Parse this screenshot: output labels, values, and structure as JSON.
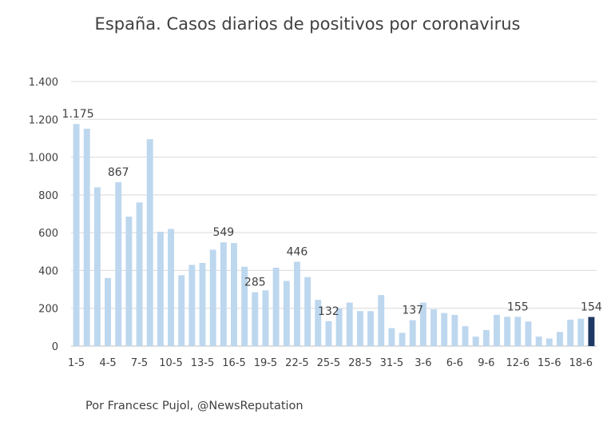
{
  "chart_data": {
    "type": "bar",
    "title": "España. Casos diarios de positivos por coronavirus",
    "xlabel": "",
    "ylabel": "",
    "ylim": [
      0,
      1400
    ],
    "yticks": [
      0,
      200,
      400,
      600,
      800,
      1000,
      1200,
      1400
    ],
    "ytick_labels": [
      "0",
      "200",
      "400",
      "600",
      "800",
      "1.000",
      "1.200",
      "1.400"
    ],
    "grid": true,
    "legend": "none",
    "categories": [
      "1-5",
      "2-5",
      "3-5",
      "4-5",
      "5-5",
      "6-5",
      "7-5",
      "8-5",
      "9-5",
      "10-5",
      "11-5",
      "12-5",
      "13-5",
      "14-5",
      "15-5",
      "16-5",
      "17-5",
      "18-5",
      "19-5",
      "20-5",
      "21-5",
      "22-5",
      "23-5",
      "24-5",
      "25-5",
      "26-5",
      "27-5",
      "28-5",
      "29-5",
      "30-5",
      "31-5",
      "1-6",
      "2-6",
      "3-6",
      "4-6",
      "5-6",
      "6-6",
      "7-6",
      "8-6",
      "9-6",
      "10-6",
      "11-6",
      "12-6",
      "13-6",
      "14-6",
      "15-6",
      "16-6",
      "17-6",
      "18-6",
      "19-6"
    ],
    "values": [
      1175,
      1150,
      840,
      360,
      867,
      685,
      760,
      1095,
      605,
      620,
      375,
      430,
      440,
      510,
      549,
      545,
      420,
      285,
      295,
      415,
      345,
      446,
      365,
      245,
      132,
      200,
      230,
      185,
      185,
      270,
      95,
      70,
      137,
      230,
      195,
      175,
      165,
      105,
      50,
      85,
      165,
      155,
      155,
      130,
      50,
      40,
      75,
      140,
      145,
      154
    ],
    "visible_tick_labels": [
      "1-5",
      "4-5",
      "7-5",
      "10-5",
      "13-5",
      "16-5",
      "19-5",
      "22-5",
      "25-5",
      "28-5",
      "31-5",
      "3-6",
      "6-6",
      "9-6",
      "12-6",
      "15-6",
      "18-6"
    ],
    "data_labels": [
      {
        "category": "1-5",
        "text": "1.175"
      },
      {
        "category": "5-5",
        "text": "867"
      },
      {
        "category": "15-5",
        "text": "549"
      },
      {
        "category": "18-5",
        "text": "285"
      },
      {
        "category": "22-5",
        "text": "446"
      },
      {
        "category": "25-5",
        "text": "132"
      },
      {
        "category": "2-6",
        "text": "137"
      },
      {
        "category": "12-6",
        "text": "155"
      },
      {
        "category": "19-6",
        "text": "154"
      }
    ],
    "colors": {
      "bar": "#bdd7ee",
      "highlight": "#1f3864",
      "grid": "#d9d9d9",
      "text": "#404040"
    },
    "highlight_category": "19-6"
  },
  "credit": "Por Francesc Pujol, @NewsReputation"
}
